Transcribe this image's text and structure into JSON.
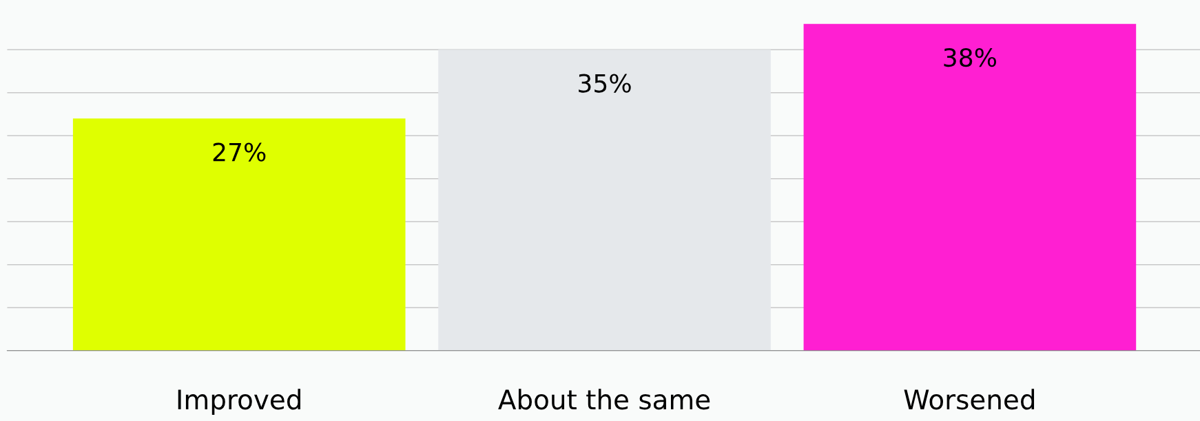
{
  "chart_data": {
    "type": "bar",
    "categories": [
      "Improved",
      "About the same",
      "Worsened"
    ],
    "values": [
      27,
      35,
      38
    ],
    "colors": [
      "#dfff00",
      "#e5e8eb",
      "#ff1fd2"
    ],
    "value_labels": [
      "27%",
      "35%",
      "38%"
    ],
    "tick_labels": "x",
    "grid": "y"
  }
}
